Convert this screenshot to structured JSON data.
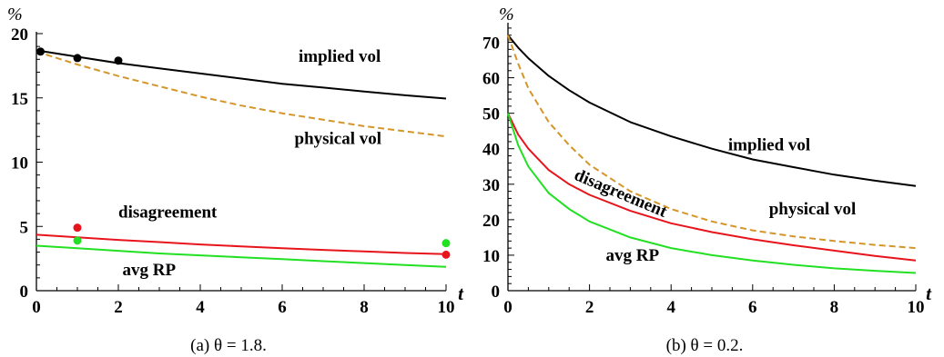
{
  "chart_data": [
    {
      "type": "line",
      "caption": "(a) θ = 1.8.",
      "ylabel": "%",
      "xlabel": "t",
      "xlim": [
        0,
        10
      ],
      "ylim": [
        0,
        20
      ],
      "x_ticks": [
        0,
        2,
        4,
        6,
        8,
        10
      ],
      "y_ticks": [
        0,
        5,
        10,
        15,
        20
      ],
      "grid": false,
      "colors": {
        "implied_vol": "#000000",
        "physical_vol": "#d4962a",
        "disagreement": "#e8141c",
        "avg_rp": "#22e022"
      },
      "series": [
        {
          "label": "implied vol",
          "key": "implied_vol",
          "style": "solid",
          "x": [
            0,
            1,
            2,
            3,
            4,
            5,
            6,
            7,
            8,
            9,
            10
          ],
          "y": [
            18.7,
            18.2,
            17.7,
            17.3,
            16.9,
            16.5,
            16.1,
            15.8,
            15.5,
            15.2,
            14.95
          ]
        },
        {
          "label": "physical vol",
          "key": "physical_vol",
          "style": "dashed",
          "x": [
            0,
            1,
            2,
            3,
            4,
            5,
            6,
            7,
            8,
            9,
            10
          ],
          "y": [
            18.6,
            17.6,
            16.7,
            15.9,
            15.1,
            14.4,
            13.8,
            13.3,
            12.8,
            12.4,
            12.0
          ]
        },
        {
          "label": "disagreement",
          "key": "disagreement",
          "style": "solid",
          "x": [
            0,
            1,
            2,
            3,
            4,
            5,
            6,
            7,
            8,
            9,
            10
          ],
          "y": [
            4.35,
            4.15,
            3.95,
            3.78,
            3.6,
            3.45,
            3.3,
            3.17,
            3.05,
            2.93,
            2.85
          ]
        },
        {
          "label": "avg RP",
          "key": "avg_rp",
          "style": "solid",
          "x": [
            0,
            1,
            2,
            3,
            4,
            5,
            6,
            7,
            8,
            9,
            10
          ],
          "y": [
            3.5,
            3.3,
            3.1,
            2.9,
            2.75,
            2.6,
            2.45,
            2.3,
            2.15,
            2.0,
            1.85
          ]
        }
      ],
      "points": [
        {
          "key": "implied_vol",
          "x": 0.1,
          "y": 18.6
        },
        {
          "key": "implied_vol",
          "x": 1,
          "y": 18.1
        },
        {
          "key": "implied_vol",
          "x": 2,
          "y": 17.9
        },
        {
          "key": "disagreement",
          "x": 1,
          "y": 4.9
        },
        {
          "key": "disagreement",
          "x": 10,
          "y": 2.8
        },
        {
          "key": "avg_rp",
          "x": 1,
          "y": 3.9
        },
        {
          "key": "avg_rp",
          "x": 10,
          "y": 3.7
        }
      ],
      "labels": [
        {
          "text": "implied vol",
          "x": 6.4,
          "y": 17.8,
          "rotate": 0
        },
        {
          "text": "physical vol",
          "x": 6.3,
          "y": 11.4,
          "rotate": 0
        },
        {
          "text": "disagreement",
          "x": 2.0,
          "y": 5.7,
          "rotate": 0
        },
        {
          "text": "avg RP",
          "x": 2.1,
          "y": 1.2,
          "rotate": 0
        }
      ]
    },
    {
      "type": "line",
      "caption": "(b) θ = 0.2.",
      "ylabel": "%",
      "xlabel": "t",
      "xlim": [
        0,
        10
      ],
      "ylim": [
        0,
        75
      ],
      "x_ticks": [
        0,
        2,
        4,
        6,
        8,
        10
      ],
      "y_ticks": [
        0,
        10,
        20,
        30,
        40,
        50,
        60,
        70
      ],
      "grid": false,
      "colors": {
        "implied_vol": "#000000",
        "physical_vol": "#d4962a",
        "disagreement": "#e8141c",
        "avg_rp": "#22e022"
      },
      "series": [
        {
          "label": "implied vol",
          "key": "implied_vol",
          "style": "solid",
          "x": [
            0,
            0.25,
            0.5,
            1,
            1.5,
            2,
            3,
            4,
            5,
            6,
            7,
            8,
            9,
            10
          ],
          "y": [
            72,
            68.5,
            65.5,
            60.5,
            56.5,
            53,
            47.5,
            43.5,
            40,
            37,
            34.8,
            32.7,
            31,
            29.5
          ]
        },
        {
          "label": "physical vol",
          "key": "physical_vol",
          "style": "dashed",
          "x": [
            0,
            0.25,
            0.5,
            1,
            1.5,
            2,
            3,
            4,
            5,
            6,
            7,
            8,
            9,
            10
          ],
          "y": [
            72,
            64,
            57,
            47.5,
            41,
            35.5,
            28,
            23,
            19.5,
            17,
            15.3,
            14,
            12.9,
            12
          ]
        },
        {
          "label": "disagreement",
          "key": "disagreement",
          "style": "solid",
          "x": [
            0,
            0.25,
            0.5,
            1,
            1.5,
            2,
            3,
            4,
            5,
            6,
            7,
            8,
            9,
            10
          ],
          "y": [
            50,
            44,
            40,
            34,
            30,
            27,
            22.5,
            19,
            16.5,
            14.5,
            12.8,
            11.3,
            9.8,
            8.5
          ]
        },
        {
          "label": "avg RP",
          "key": "avg_rp",
          "style": "solid",
          "x": [
            0,
            0.25,
            0.5,
            1,
            1.5,
            2,
            3,
            4,
            5,
            6,
            7,
            8,
            9,
            10
          ],
          "y": [
            50,
            41,
            35,
            27.5,
            23,
            19.5,
            15,
            12,
            10,
            8.5,
            7.3,
            6.3,
            5.6,
            5
          ]
        }
      ],
      "points": [],
      "labels": [
        {
          "text": "implied vol",
          "x": 5.4,
          "y": 39.5,
          "rotate": 0
        },
        {
          "text": "physical vol",
          "x": 6.4,
          "y": 21.5,
          "rotate": 0
        },
        {
          "text": "disagreement",
          "x": 1.6,
          "y": 31.5,
          "rotate": 23
        },
        {
          "text": "avg RP",
          "x": 2.4,
          "y": 8.5,
          "rotate": 0
        }
      ]
    }
  ]
}
